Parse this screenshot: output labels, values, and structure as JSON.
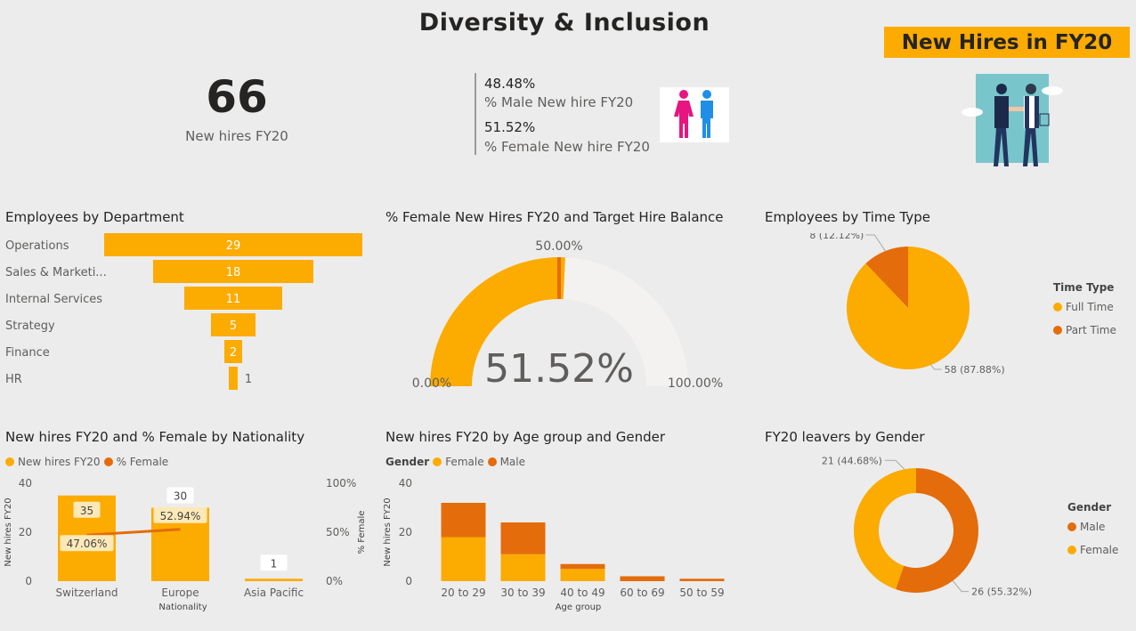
{
  "header": {
    "title": "Diversity & Inclusion",
    "banner": "New Hires in FY20"
  },
  "kpi": {
    "new_hires_value": "66",
    "new_hires_label": "New hires FY20",
    "male_pct": "48.48%",
    "male_label": "% Male New hire FY20",
    "female_pct": "51.52%",
    "female_label": "% Female New hire FY20"
  },
  "colors": {
    "primary": "#fcab00",
    "secondary": "#e46c0a",
    "gauge_track": "#f3f2f1",
    "background": "#ececec"
  },
  "chart_data": [
    {
      "id": "dept",
      "type": "bar",
      "orientation": "horizontal-funnel",
      "title": "Employees by Department",
      "categories": [
        "Operations",
        "Sales & Marketi...",
        "Internal Services",
        "Strategy",
        "Finance",
        "HR"
      ],
      "values": [
        29,
        18,
        11,
        5,
        2,
        1
      ]
    },
    {
      "id": "gauge",
      "type": "gauge",
      "title": "% Female New Hires FY20 and Target Hire Balance",
      "value": 51.52,
      "value_label": "51.52%",
      "target": 50,
      "target_label": "50.00%",
      "min_label": "0.00%",
      "max_label": "100.00%",
      "min": 0,
      "max": 100
    },
    {
      "id": "timetype",
      "type": "pie",
      "title": "Employees by Time Type",
      "legend_title": "Time Type",
      "slices": [
        {
          "name": "Full Time",
          "value": 58,
          "label": "58 (87.88%)"
        },
        {
          "name": "Part Time",
          "value": 8,
          "label": "8 (12.12%)"
        }
      ]
    },
    {
      "id": "nationality",
      "type": "bar",
      "title": "New hires FY20 and % Female by Nationality",
      "legend": [
        "New hires FY20",
        "% Female"
      ],
      "categories": [
        "Switzerland",
        "Europe",
        "Asia Pacific"
      ],
      "series": [
        {
          "name": "New hires FY20",
          "values": [
            35,
            30,
            1
          ],
          "labels": [
            "35",
            "30",
            "1"
          ]
        },
        {
          "name": "% Female",
          "values": [
            47.06,
            52.94,
            null
          ],
          "labels": [
            "47.06%",
            "52.94%",
            ""
          ]
        }
      ],
      "xlabel": "Nationality",
      "ylabel": "New hires FY20",
      "y2label": "% Female",
      "ylim": [
        0,
        40
      ],
      "yticks": [
        "0",
        "20",
        "40"
      ],
      "y2lim": [
        0,
        100
      ],
      "y2ticks": [
        "0%",
        "50%",
        "100%"
      ]
    },
    {
      "id": "agegroup",
      "type": "bar",
      "stacked": true,
      "title": "New hires FY20 by Age group and Gender",
      "legend_title": "Gender",
      "legend": [
        "Female",
        "Male"
      ],
      "categories": [
        "20 to 29",
        "30 to 39",
        "40 to 49",
        "60 to 69",
        "50 to 59"
      ],
      "series": [
        {
          "name": "Female",
          "values": [
            18,
            11,
            5,
            0,
            0
          ]
        },
        {
          "name": "Male",
          "values": [
            14,
            13,
            2,
            2,
            1
          ]
        }
      ],
      "xlabel": "Age group",
      "ylabel": "New hires FY20",
      "ylim": [
        0,
        40
      ],
      "yticks": [
        "0",
        "20",
        "40"
      ]
    },
    {
      "id": "leavers",
      "type": "pie",
      "donut": true,
      "title": "FY20 leavers by Gender",
      "legend_title": "Gender",
      "slices": [
        {
          "name": "Male",
          "value": 26,
          "label": "26 (55.32%)"
        },
        {
          "name": "Female",
          "value": 21,
          "label": "21 (44.68%)"
        }
      ]
    }
  ]
}
